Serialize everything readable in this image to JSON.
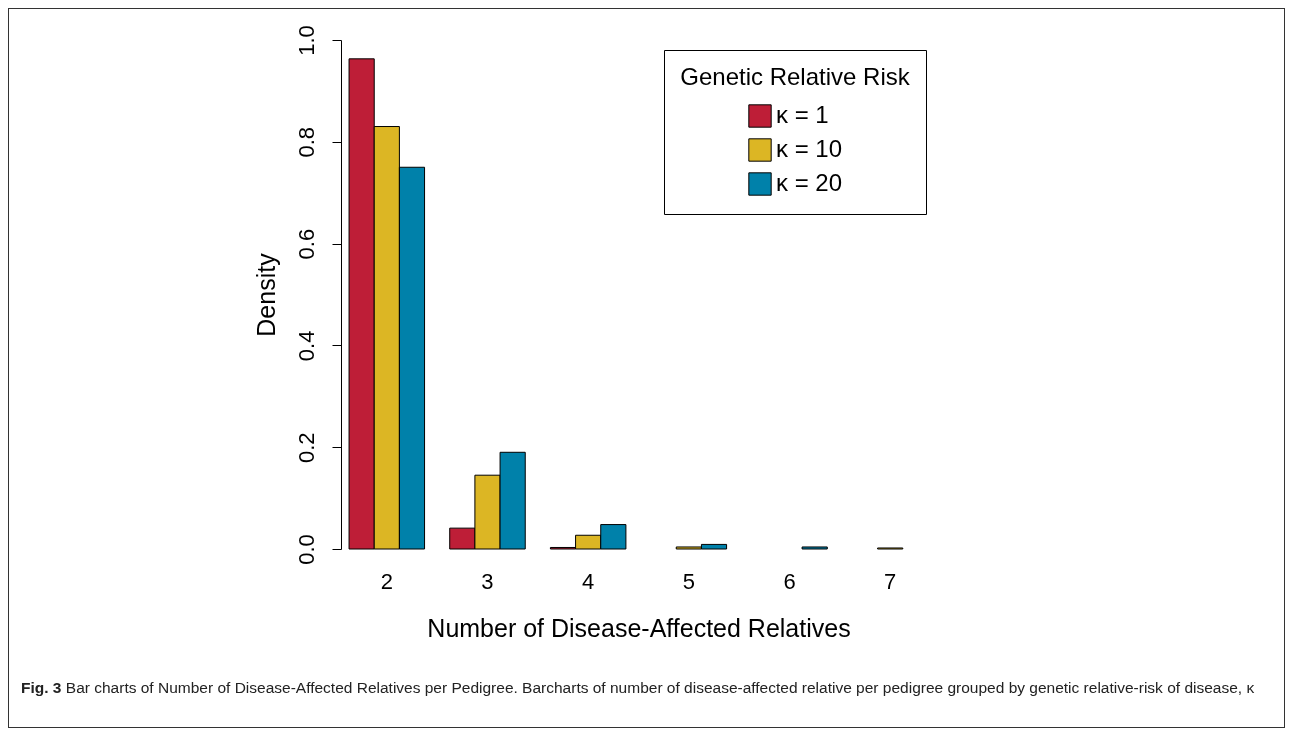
{
  "chart_data": {
    "type": "bar",
    "xlabel": "Number of Disease-Affected Relatives",
    "ylabel": "Density",
    "legend_title": "Genetic Relative Risk",
    "categories": [
      "2",
      "3",
      "4",
      "5",
      "6",
      "7"
    ],
    "series": [
      {
        "name": "κ = 1",
        "color": "#be1e37",
        "values": [
          0.963,
          0.041,
          0.003,
          0,
          0,
          0
        ]
      },
      {
        "name": "κ = 10",
        "color": "#dcb624",
        "values": [
          0.83,
          0.145,
          0.027,
          0.004,
          0,
          0.002
        ]
      },
      {
        "name": "κ = 20",
        "color": "#0081aa",
        "values": [
          0.75,
          0.19,
          0.048,
          0.009,
          0.004,
          0
        ]
      }
    ],
    "ylim": [
      0,
      1
    ],
    "yticks": [
      {
        "value": 0,
        "label": "0.0"
      },
      {
        "value": 0.2,
        "label": "0.2"
      },
      {
        "value": 0.4,
        "label": "0.4"
      },
      {
        "value": 0.6,
        "label": "0.6"
      },
      {
        "value": 0.8,
        "label": "0.8"
      },
      {
        "value": 1,
        "label": "1.0"
      }
    ],
    "grid": false,
    "legend": "top right",
    "annotations": [
      "Fig. 3",
      "Bar charts of Number of Disease-Affected Relatives per Pedigree. Barcharts of number of disease-affected relative per pedigree grouped by genetic relative-risk of disease, κ"
    ]
  }
}
